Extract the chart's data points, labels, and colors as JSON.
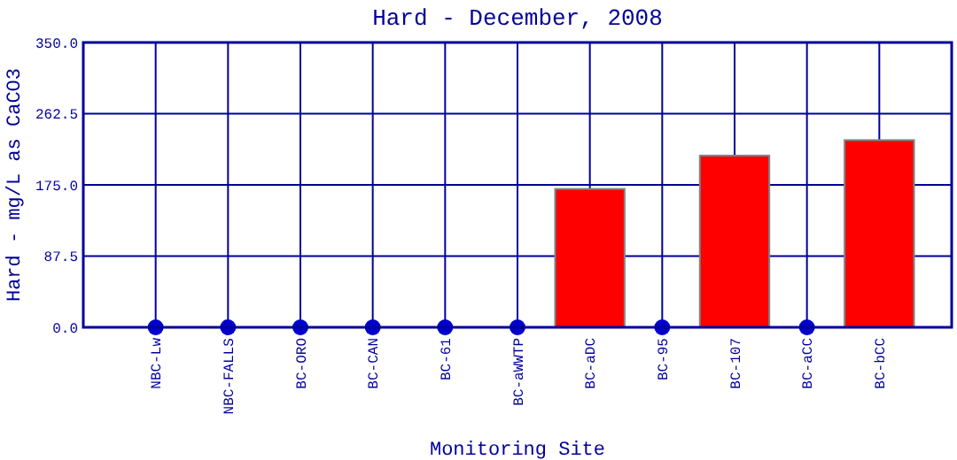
{
  "chart_data": {
    "type": "bar",
    "title": "Hard - December, 2008",
    "xlabel": "Monitoring Site",
    "ylabel": "Hard - mg/L as CaCO3",
    "categories": [
      "NBC-Lw",
      "NBC-FALLS",
      "BC-ORO",
      "BC-CAN",
      "BC-61",
      "BC-aWWTP",
      "BC-aDC",
      "BC-95",
      "BC-107",
      "BC-aCC",
      "BC-bCC"
    ],
    "series": [
      {
        "color": "#ff0000",
        "values": [
          null,
          null,
          null,
          null,
          null,
          null,
          170,
          null,
          211,
          null,
          230
        ]
      },
      {
        "type": "scatter",
        "color": "#0000cc",
        "x": [
          "NBC-Lw",
          "NBC-FALLS",
          "BC-ORO",
          "BC-CAN",
          "BC-61",
          "BC-aWWTP",
          "BC-95",
          "BC-aCC"
        ],
        "values": [
          0,
          0,
          0,
          0,
          0,
          0,
          0,
          0
        ]
      }
    ],
    "ylim": [
      0,
      350
    ],
    "yticks": [
      {
        "value": 0,
        "label": "0.0"
      },
      87.5,
      {
        "value": 175,
        "label": "175.0"
      },
      262.5,
      {
        "value": 350,
        "label": "350.0"
      }
    ],
    "grid": true,
    "marker": "circle"
  }
}
